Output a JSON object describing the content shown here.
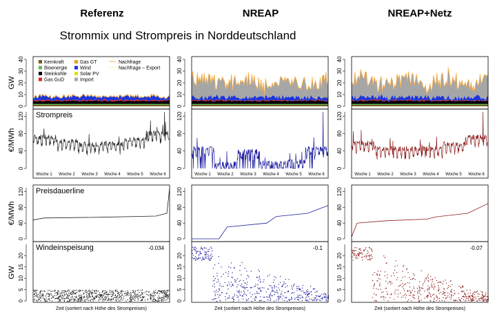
{
  "headers": [
    "Referenz",
    "NREAP",
    "NREAP+Netz"
  ],
  "subtitle": "Strommix und Strompreis in Norddeutschland",
  "colors": {
    "kernkraft": "#7a5a1c",
    "bioenergie": "#5cb85c",
    "steinkohle": "#000000",
    "gas_gud": "#e8201c",
    "gas_gt": "#e8a020",
    "wind": "#1c34d8",
    "solar": "#e8e000",
    "import": "#a6a6a6",
    "nachfrage": "#ffb040",
    "nachfrage_export": "#fff0a0",
    "price_ref": "#222222",
    "price_nreap": "#1a1aa0",
    "price_netz": "#8b1a1a"
  },
  "chart_data": [
    {
      "type": "area",
      "panel": "Strommix",
      "ylabel": "GW",
      "ylim": [
        0,
        40
      ],
      "yticks": [
        "0",
        "10",
        "20",
        "30",
        "40"
      ],
      "legend": [
        {
          "name": "Kernkraft",
          "color": "#7a5a1c"
        },
        {
          "name": "Bioenergie",
          "color": "#5cb85c"
        },
        {
          "name": "Steinkohle",
          "color": "#000000"
        },
        {
          "name": "Gas GuD",
          "color": "#e8201c"
        },
        {
          "name": "Gas GT",
          "color": "#e8a020"
        },
        {
          "name": "Wind",
          "color": "#1c34d8"
        },
        {
          "name": "Solar PV",
          "color": "#e8e000"
        },
        {
          "name": "Import",
          "color": "#a6a6a6"
        },
        {
          "name": "Nachfrage",
          "color": "#ffb040"
        },
        {
          "name": "Nachfrage – Export",
          "color": "#fff0a0"
        }
      ],
      "scenarios": [
        {
          "name": "Referenz",
          "total_gw": [
            8,
            10
          ],
          "import_gw": [
            0,
            1
          ]
        },
        {
          "name": "NREAP",
          "total_gw": [
            15,
            28
          ],
          "import_gw": [
            5,
            18
          ]
        },
        {
          "name": "NREAP+Netz",
          "total_gw": [
            15,
            28
          ],
          "import_gw": [
            5,
            18
          ]
        }
      ]
    },
    {
      "type": "line",
      "panel": "Strompreis",
      "title": "Strompreis",
      "ylabel": "€/MWh",
      "ylim": [
        0,
        130
      ],
      "yticks": [
        "0",
        "40",
        "80",
        "120"
      ],
      "categories": [
        "Woche 1",
        "Woche 2",
        "Woche 3",
        "Woche 4",
        "Woche 5",
        "Woche 6"
      ],
      "series": [
        {
          "name": "Referenz",
          "weekly_mean": [
            72,
            62,
            55,
            57,
            66,
            80
          ],
          "max": 130
        },
        {
          "name": "NREAP",
          "weekly_mean": [
            45,
            10,
            38,
            12,
            15,
            45
          ],
          "max": 130
        },
        {
          "name": "NREAP+Netz",
          "weekly_mean": [
            58,
            46,
            45,
            45,
            56,
            72
          ],
          "max": 130
        }
      ]
    },
    {
      "type": "line",
      "panel": "Preisdauerline",
      "title": "Preisdauerline",
      "ylabel": "€/MWh",
      "ylim": [
        0,
        130
      ],
      "yticks": [
        "0",
        "40",
        "80",
        "120"
      ],
      "series": [
        {
          "name": "Referenz",
          "x": [
            0,
            0.08,
            0.5,
            0.9,
            0.98,
            1
          ],
          "y": [
            48,
            53,
            55,
            58,
            65,
            128
          ]
        },
        {
          "name": "NREAP",
          "x": [
            0,
            0.2,
            0.26,
            0.55,
            0.62,
            0.85,
            1
          ],
          "y": [
            0,
            0,
            30,
            40,
            57,
            65,
            85
          ]
        },
        {
          "name": "NREAP+Netz",
          "x": [
            0,
            0.04,
            0.25,
            0.55,
            0.62,
            0.85,
            1
          ],
          "y": [
            5,
            40,
            46,
            50,
            56,
            65,
            90
          ]
        }
      ]
    },
    {
      "type": "scatter",
      "panel": "Windeinspeisung",
      "title": "Windeinspeisung",
      "ylabel": "GW",
      "ylim": [
        0,
        25
      ],
      "yticks": [
        "0",
        "5",
        "10",
        "15",
        "20"
      ],
      "xlabel": "Zeit (sortiert nach Höhe des Strompreises)",
      "series": [
        {
          "name": "Referenz",
          "correlation": "-0.034",
          "y_range": [
            0,
            5
          ]
        },
        {
          "name": "NREAP",
          "correlation": "-0.1",
          "y_range": [
            0,
            24
          ]
        },
        {
          "name": "NREAP+Netz",
          "correlation": "-0.07",
          "y_range": [
            0,
            24
          ]
        }
      ]
    }
  ]
}
